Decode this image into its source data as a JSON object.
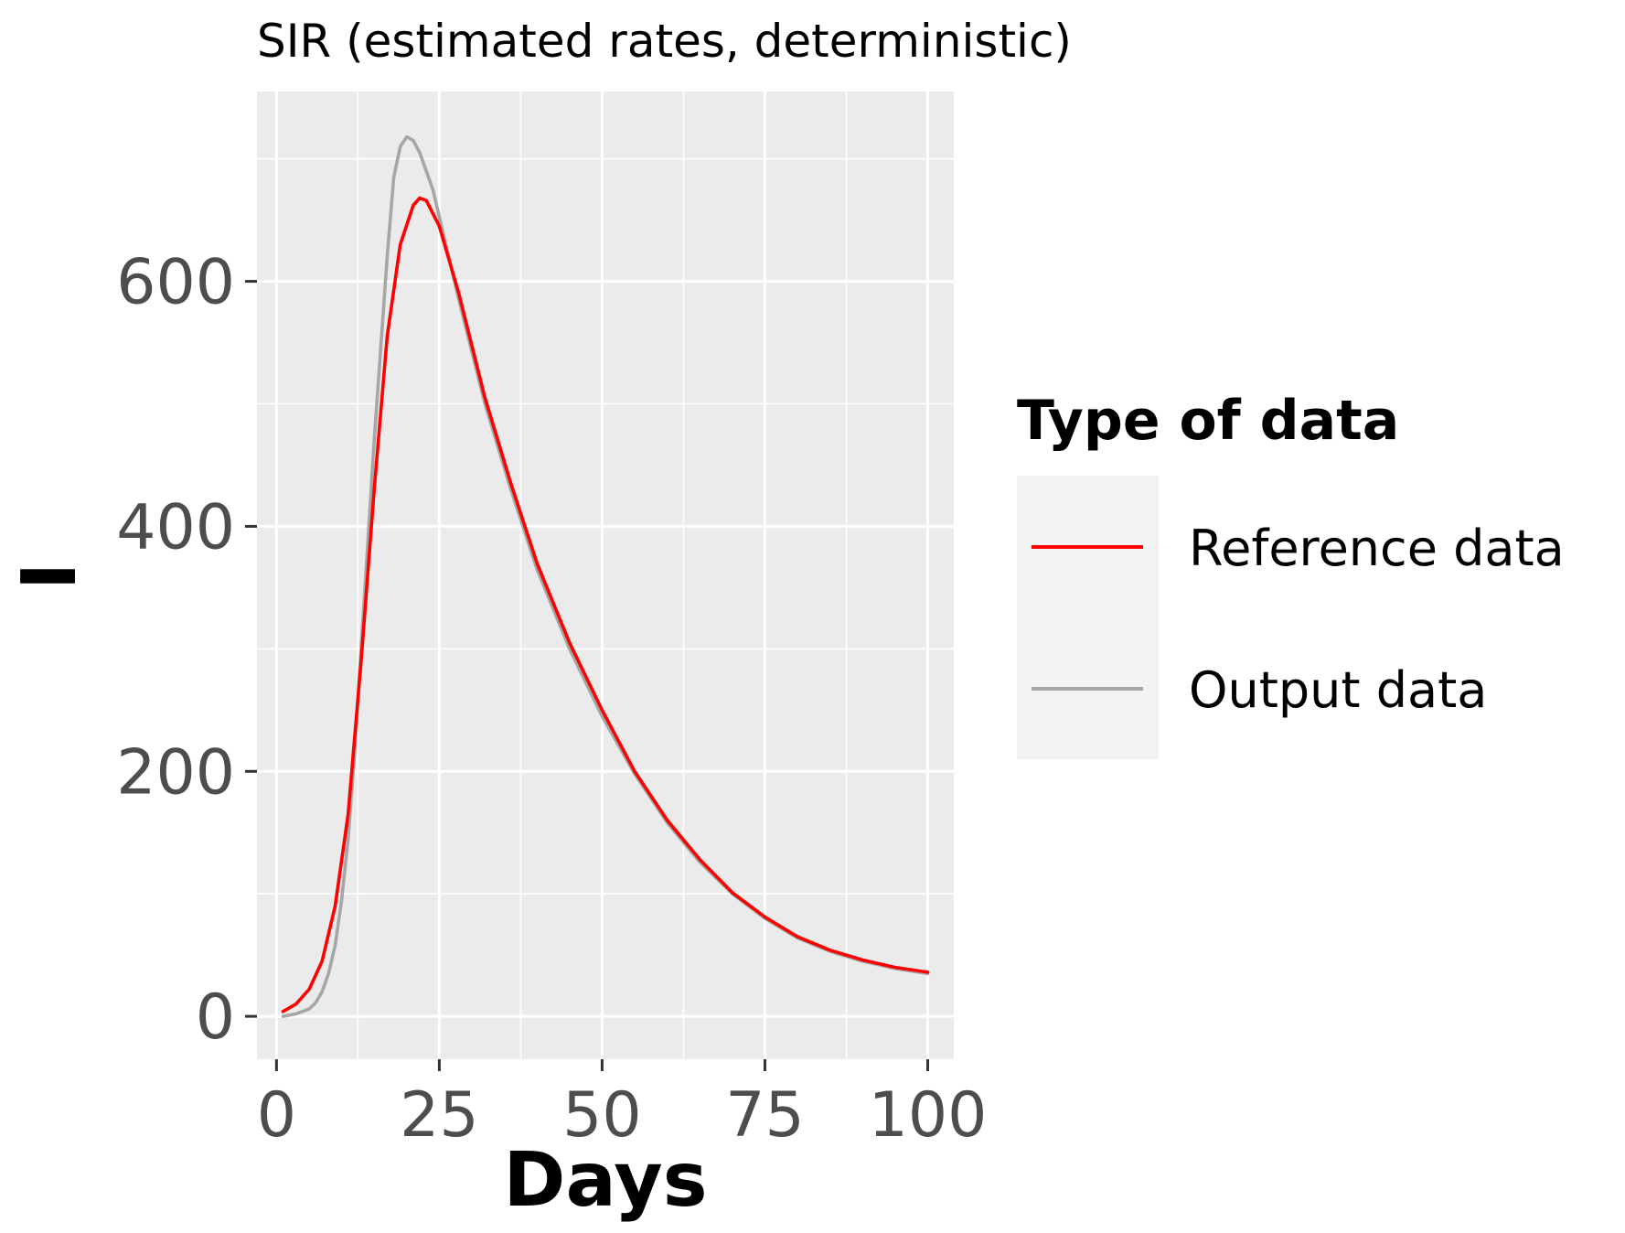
{
  "chart_data": {
    "type": "line",
    "title": "SIR (estimated rates, deterministic)",
    "xlabel": "Days",
    "ylabel": "I",
    "xlim": [
      -3,
      104
    ],
    "ylim": [
      -35,
      755
    ],
    "x_ticks": [
      0,
      25,
      50,
      75,
      100
    ],
    "y_ticks": [
      0,
      200,
      400,
      600
    ],
    "grid": true,
    "legend_title": "Type of data",
    "legend_position": "right",
    "series": [
      {
        "name": "Reference data",
        "color": "#ff0000",
        "x": [
          1,
          3,
          5,
          7,
          9,
          11,
          13,
          15,
          17,
          19,
          21,
          22,
          23,
          25,
          28,
          32,
          36,
          40,
          45,
          50,
          55,
          60,
          65,
          70,
          75,
          80,
          85,
          90,
          95,
          100
        ],
        "y": [
          4,
          10,
          22,
          45,
          90,
          165,
          290,
          430,
          555,
          630,
          662,
          668,
          666,
          645,
          590,
          505,
          435,
          370,
          305,
          250,
          200,
          160,
          128,
          101,
          81,
          65,
          54,
          46,
          40,
          36
        ]
      },
      {
        "name": "Output data",
        "color": "#a6a6a6",
        "x": [
          1,
          3,
          5,
          6,
          7,
          8,
          9,
          10,
          11,
          12,
          13,
          14,
          15,
          16,
          17,
          18,
          19,
          20,
          21,
          22,
          23,
          24,
          26,
          28,
          32,
          36,
          40,
          45,
          50,
          55,
          60,
          65,
          70,
          75,
          80,
          85,
          90,
          95,
          100
        ],
        "y": [
          0,
          2,
          6,
          11,
          20,
          35,
          58,
          95,
          145,
          215,
          300,
          385,
          470,
          545,
          620,
          685,
          710,
          718,
          715,
          705,
          690,
          675,
          630,
          585,
          500,
          430,
          365,
          300,
          245,
          198,
          158,
          126,
          100,
          80,
          64,
          53,
          45,
          39,
          35
        ]
      }
    ]
  }
}
